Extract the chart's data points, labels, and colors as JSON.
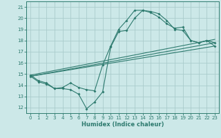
{
  "xlabel": "Humidex (Indice chaleur)",
  "bg_color": "#cce8e8",
  "grid_color": "#aacccc",
  "line_color": "#2d7a6e",
  "xlim": [
    -0.5,
    23.5
  ],
  "ylim": [
    11.5,
    21.5
  ],
  "xticks": [
    0,
    1,
    2,
    3,
    4,
    5,
    6,
    7,
    8,
    9,
    10,
    11,
    12,
    13,
    14,
    15,
    16,
    17,
    18,
    19,
    20,
    21,
    22,
    23
  ],
  "yticks": [
    12,
    13,
    14,
    15,
    16,
    17,
    18,
    19,
    20,
    21
  ],
  "curve1_x": [
    0,
    1,
    2,
    3,
    4,
    5,
    6,
    7,
    8,
    9,
    10,
    11,
    12,
    13,
    14,
    15,
    16,
    17,
    18,
    19,
    20,
    21,
    22,
    23
  ],
  "curve1_y": [
    14.8,
    14.3,
    14.1,
    13.7,
    13.7,
    13.6,
    13.2,
    11.9,
    12.5,
    13.4,
    17.4,
    18.8,
    18.9,
    20.0,
    20.7,
    20.6,
    20.4,
    19.8,
    19.0,
    18.9,
    18.0,
    17.8,
    18.0,
    17.5
  ],
  "curve2_x": [
    0,
    1,
    2,
    3,
    4,
    5,
    6,
    7,
    8,
    9,
    10,
    11,
    12,
    13,
    14,
    15,
    16,
    17,
    18,
    19,
    20,
    21,
    22,
    23
  ],
  "curve2_y": [
    14.9,
    14.4,
    14.2,
    13.7,
    13.8,
    14.2,
    13.8,
    13.6,
    13.5,
    15.8,
    17.5,
    19.0,
    19.8,
    20.7,
    20.7,
    20.5,
    20.1,
    19.5,
    19.1,
    19.2,
    18.0,
    17.8,
    18.0,
    17.8
  ],
  "trend1_x": [
    0,
    23
  ],
  "trend1_y": [
    14.8,
    17.5
  ],
  "trend2_x": [
    0,
    23
  ],
  "trend2_y": [
    14.8,
    17.8
  ],
  "trend3_x": [
    0,
    23
  ],
  "trend3_y": [
    14.9,
    18.1
  ]
}
